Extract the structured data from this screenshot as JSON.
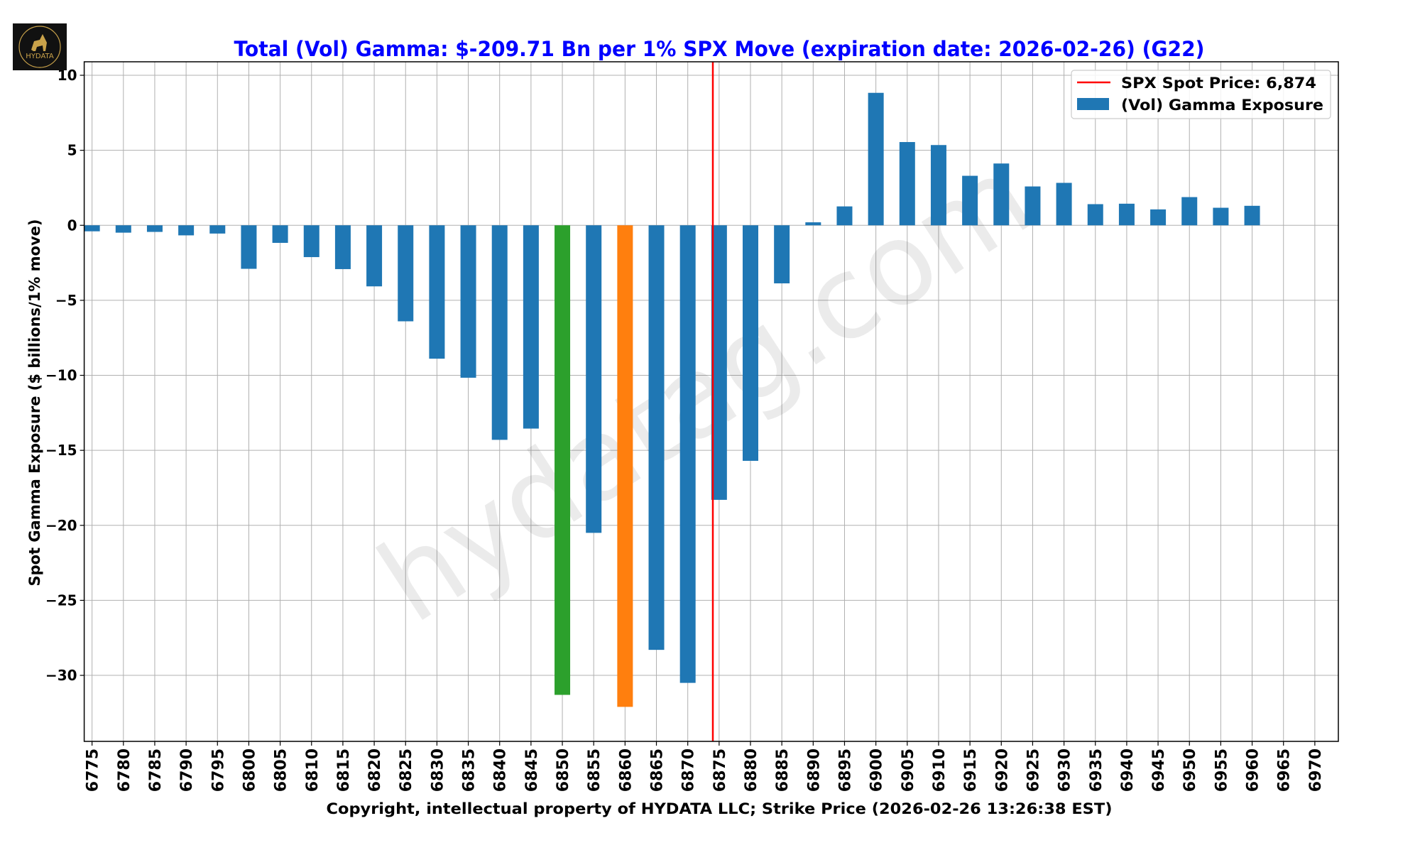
{
  "logo": {
    "text": "HYDATA"
  },
  "watermark": "hydatag.com",
  "chart_data": {
    "type": "bar",
    "title": "Total (Vol) Gamma: $-209.71 Bn per 1% SPX Move (expiration date: 2026-02-26) (G22)",
    "xlabel": "Copyright, intellectual property of HYDATA LLC; Strike Price (2026-02-26 13:26:38 EST)",
    "ylabel": "Spot Gamma Exposure ($ billions/1% move)",
    "ylim": [
      -34.4,
      10.9
    ],
    "yticks": [
      10,
      5,
      0,
      -5,
      -10,
      -15,
      -20,
      -25,
      -30
    ],
    "ytick_labels": [
      "10",
      "5",
      "0",
      "−05",
      "−10",
      "−15",
      "−20",
      "−25",
      "−30"
    ],
    "grid": true,
    "legend_position": "top-right",
    "categories": [
      "6775",
      "6780",
      "6785",
      "6790",
      "6795",
      "6800",
      "6805",
      "6810",
      "6815",
      "6820",
      "6825",
      "6830",
      "6835",
      "6840",
      "6845",
      "6850",
      "6855",
      "6860",
      "6865",
      "6870",
      "6875",
      "6880",
      "6885",
      "6890",
      "6895",
      "6900",
      "6905",
      "6910",
      "6915",
      "6920",
      "6925",
      "6930",
      "6935",
      "6940",
      "6945",
      "6950",
      "6955",
      "6960",
      "6965",
      "6970"
    ],
    "series": [
      {
        "name": "(Vol) Gamma Exposure",
        "color": "#1f77b4",
        "values": [
          -0.4,
          -0.49,
          -0.44,
          -0.67,
          -0.55,
          -2.9,
          -1.17,
          -2.12,
          -2.92,
          -4.07,
          -6.4,
          -8.89,
          -10.16,
          -14.3,
          -13.55,
          -31.3,
          -20.5,
          -32.1,
          -28.3,
          -30.5,
          -18.3,
          -15.7,
          -3.87,
          0.2,
          1.26,
          8.83,
          5.55,
          5.35,
          3.3,
          4.12,
          2.59,
          2.83,
          1.41,
          1.44,
          1.06,
          1.88,
          1.17,
          1.3,
          0,
          0
        ]
      }
    ],
    "highlights": [
      {
        "category": "6850",
        "color": "#2ca02c"
      },
      {
        "category": "6860",
        "color": "#ff7f0e"
      }
    ],
    "spot_line": {
      "label": "SPX Spot Price: 6,874",
      "value": 6874,
      "color": "#ff0000"
    },
    "title_color": "#0000ff"
  }
}
